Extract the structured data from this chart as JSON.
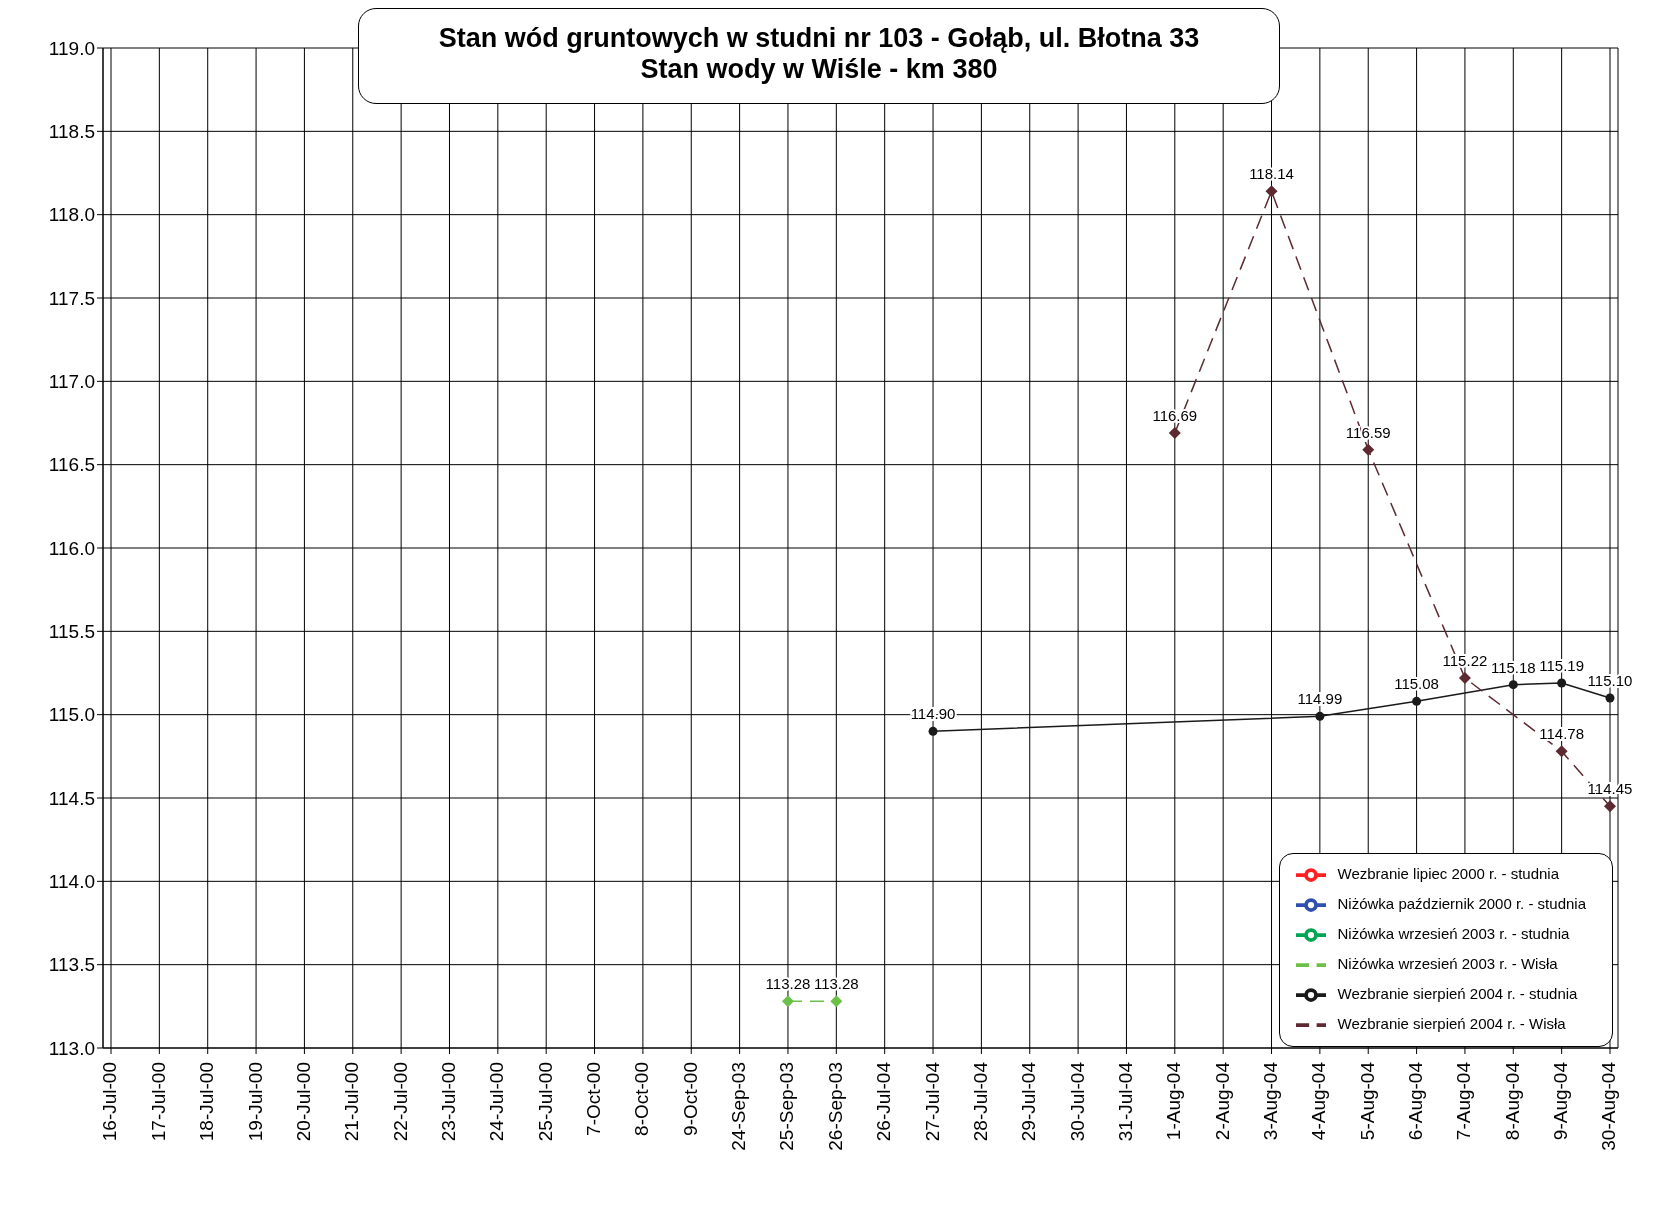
{
  "chart_data": {
    "type": "line",
    "title": "Stan wód gruntowych w studni nr 103 - Gołąb, ul. Błotna 33",
    "subtitle": "Stan wody w Wiśle - km 380",
    "categories": [
      "16-Jul-00",
      "17-Jul-00",
      "18-Jul-00",
      "19-Jul-00",
      "20-Jul-00",
      "21-Jul-00",
      "22-Jul-00",
      "23-Jul-00",
      "24-Jul-00",
      "25-Jul-00",
      "7-Oct-00",
      "8-Oct-00",
      "9-Oct-00",
      "24-Sep-03",
      "25-Sep-03",
      "26-Sep-03",
      "26-Jul-04",
      "27-Jul-04",
      "28-Jul-04",
      "29-Jul-04",
      "30-Jul-04",
      "31-Jul-04",
      "1-Aug-04",
      "2-Aug-04",
      "3-Aug-04",
      "4-Aug-04",
      "5-Aug-04",
      "6-Aug-04",
      "7-Aug-04",
      "8-Aug-04",
      "9-Aug-04",
      "30-Aug-04"
    ],
    "series": [
      {
        "name": "Wezbranie lipiec 2000 r. - studnia",
        "color": "#ff2020",
        "marker": "circle",
        "line_style": "solid",
        "values": [
          null,
          null,
          null,
          null,
          null,
          null,
          null,
          null,
          null,
          null,
          null,
          null,
          null,
          null,
          null,
          null,
          null,
          null,
          null,
          null,
          null,
          null,
          null,
          null,
          null,
          null,
          null,
          null,
          null,
          null,
          null,
          null
        ]
      },
      {
        "name": "Niżówka październik 2000 r. - studnia",
        "color": "#3050b0",
        "marker": "circle",
        "line_style": "solid",
        "values": [
          null,
          null,
          null,
          null,
          null,
          null,
          null,
          null,
          null,
          null,
          null,
          null,
          null,
          null,
          null,
          null,
          null,
          null,
          null,
          null,
          null,
          null,
          null,
          null,
          null,
          null,
          null,
          null,
          null,
          null,
          null,
          null
        ]
      },
      {
        "name": "Niżówka wrzesień 2003 r. - studnia",
        "color": "#00a651",
        "marker": "circle",
        "line_style": "solid",
        "values": [
          null,
          null,
          null,
          null,
          null,
          null,
          null,
          null,
          null,
          null,
          null,
          null,
          null,
          null,
          null,
          null,
          null,
          null,
          null,
          null,
          null,
          null,
          null,
          null,
          null,
          null,
          null,
          null,
          null,
          null,
          null,
          null
        ]
      },
      {
        "name": "Niżówka wrzesień 2003 r. - Wisła",
        "color": "#6cc04a",
        "marker": "diamond",
        "line_style": "dashed",
        "values": [
          null,
          null,
          null,
          null,
          null,
          null,
          null,
          null,
          null,
          null,
          null,
          null,
          null,
          null,
          113.28,
          113.28,
          null,
          null,
          null,
          null,
          null,
          null,
          null,
          null,
          null,
          null,
          null,
          null,
          null,
          null,
          null,
          null
        ],
        "value_labels": [
          null,
          null,
          null,
          null,
          null,
          null,
          null,
          null,
          null,
          null,
          null,
          null,
          null,
          null,
          "113.28",
          "113.28",
          null,
          null,
          null,
          null,
          null,
          null,
          null,
          null,
          null,
          null,
          null,
          null,
          null,
          null,
          null,
          null
        ]
      },
      {
        "name": "Wezbranie sierpień 2004 r. - studnia",
        "color": "#1a1a1a",
        "marker": "circle",
        "line_style": "solid",
        "values": [
          null,
          null,
          null,
          null,
          null,
          null,
          null,
          null,
          null,
          null,
          null,
          null,
          null,
          null,
          null,
          null,
          null,
          114.9,
          null,
          null,
          null,
          null,
          null,
          null,
          null,
          114.99,
          null,
          115.08,
          null,
          115.18,
          115.19,
          115.1
        ],
        "value_labels": [
          null,
          null,
          null,
          null,
          null,
          null,
          null,
          null,
          null,
          null,
          null,
          null,
          null,
          null,
          null,
          null,
          null,
          "114.90",
          null,
          null,
          null,
          null,
          null,
          null,
          null,
          "114.99",
          null,
          "115.08",
          null,
          "115.18",
          "115.19",
          "115.10"
        ]
      },
      {
        "name": "Wezbranie sierpień 2004 r. - Wisła",
        "color": "#5c2a30",
        "marker": "diamond",
        "line_style": "dashed",
        "values": [
          null,
          null,
          null,
          null,
          null,
          null,
          null,
          null,
          null,
          null,
          null,
          null,
          null,
          null,
          null,
          null,
          null,
          null,
          null,
          null,
          null,
          null,
          116.69,
          null,
          118.14,
          null,
          116.59,
          null,
          115.22,
          null,
          114.78,
          114.45
        ],
        "value_labels": [
          null,
          null,
          null,
          null,
          null,
          null,
          null,
          null,
          null,
          null,
          null,
          null,
          null,
          null,
          null,
          null,
          null,
          null,
          null,
          null,
          null,
          null,
          "116.69",
          null,
          "118.14",
          null,
          "116.59",
          null,
          "115.22",
          null,
          "114.78",
          "114.45"
        ]
      }
    ],
    "ylim": [
      113,
      119
    ],
    "yticks": [
      {
        "value": 113,
        "label": "113.0"
      },
      {
        "value": 113.5,
        "label": "113.5"
      },
      {
        "value": 114,
        "label": "114.0"
      },
      {
        "value": 114.5,
        "label": "114.5"
      },
      {
        "value": 115,
        "label": "115.0"
      },
      {
        "value": 115.5,
        "label": "115.5"
      },
      {
        "value": 116,
        "label": "116.0"
      },
      {
        "value": 116.5,
        "label": "116.5"
      },
      {
        "value": 117,
        "label": "117.0"
      },
      {
        "value": 117.5,
        "label": "117.5"
      },
      {
        "value": 118,
        "label": "118.0"
      },
      {
        "value": 118.5,
        "label": "118.5"
      },
      {
        "value": 119,
        "label": "119.0"
      }
    ],
    "grid": true,
    "legend": "bottom right"
  }
}
